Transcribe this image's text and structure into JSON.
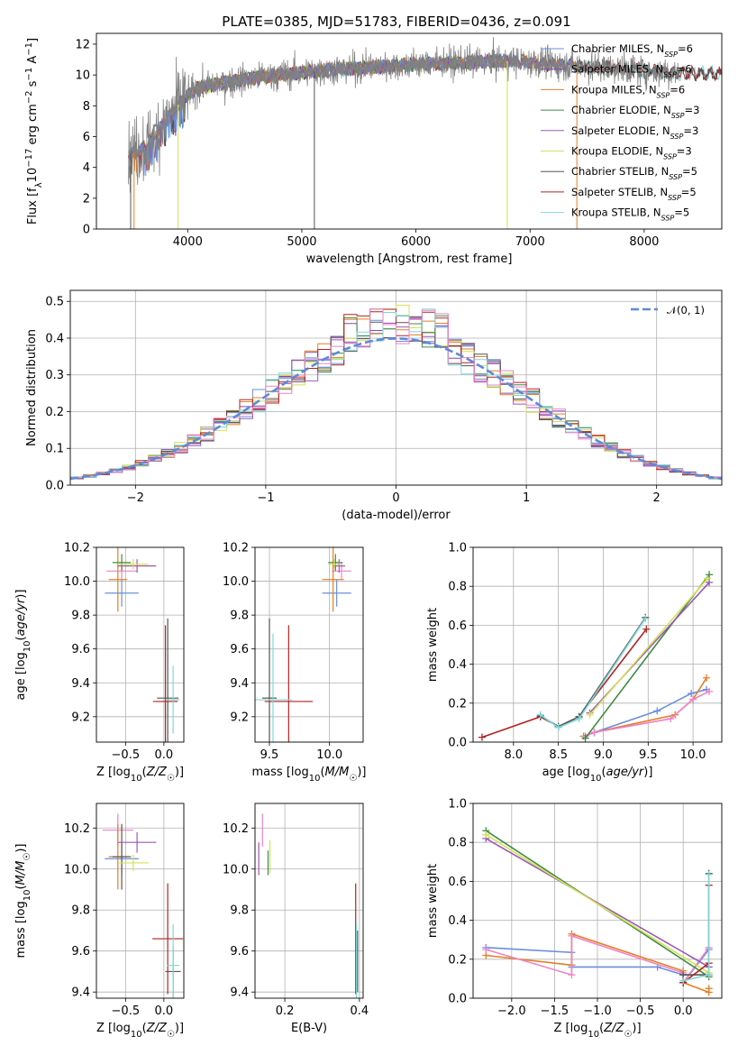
{
  "title": "PLATE=0385, MJD=51783, FIBERID=0436, z=0.091",
  "colors": {
    "chabrier_miles": "#6a8fdc",
    "salpeter_miles": "#8e44b0",
    "kroupa_miles": "#e67e22",
    "chabrier_elodie": "#3d8c40",
    "salpeter_elodie": "#9b59b6",
    "kroupa_elodie": "#d4e157",
    "chabrier_stelib": "#555555",
    "salpeter_stelib": "#b22222",
    "kroupa_stelib": "#7fd8d8",
    "data": "#808080",
    "normal": "#5b8bd9",
    "pink": "#ee82c8"
  },
  "chart_data": [
    {
      "type": "line",
      "id": "spectrum",
      "xlabel": "wavelength [Angstrom, rest frame]",
      "ylabel": "Flux [f_λ10^-17 erg cm^-2 s^-1 A^-1]",
      "xlim": [
        3200,
        8680
      ],
      "ylim": [
        0,
        12.7
      ],
      "xticks": [
        4000,
        5000,
        6000,
        7000,
        8000
      ],
      "yticks": [
        0,
        2,
        4,
        6,
        8,
        10,
        12
      ],
      "grid": false,
      "legend_position": "right",
      "legend": [
        {
          "label": "Chabrier MILES, N",
          "sub": "SSP",
          "suffix": "=6",
          "color": "chabrier_miles"
        },
        {
          "label": "Salpeter MILES, N",
          "sub": "SSP",
          "suffix": "=6",
          "color": "salpeter_miles"
        },
        {
          "label": "Kroupa MILES, N",
          "sub": "SSP",
          "suffix": "=6",
          "color": "kroupa_miles"
        },
        {
          "label": "Chabrier ELODIE, N",
          "sub": "SSP",
          "suffix": "=3",
          "color": "chabrier_elodie"
        },
        {
          "label": "Salpeter ELODIE, N",
          "sub": "SSP",
          "suffix": "=3",
          "color": "salpeter_elodie"
        },
        {
          "label": "Kroupa ELODIE, N",
          "sub": "SSP",
          "suffix": "=3",
          "color": "kroupa_elodie"
        },
        {
          "label": "Chabrier STELIB, N",
          "sub": "SSP",
          "suffix": "=5",
          "color": "chabrier_stelib"
        },
        {
          "label": "Salpeter STELIB, N",
          "sub": "SSP",
          "suffix": "=5",
          "color": "salpeter_stelib"
        },
        {
          "label": "Kroupa STELIB, N",
          "sub": "SSP",
          "suffix": "=5",
          "color": "kroupa_stelib"
        }
      ],
      "continuum": {
        "x": [
          3500,
          3650,
          3800,
          3950,
          4100,
          4400,
          4800,
          5200,
          5600,
          6000,
          6400,
          6800,
          7200,
          7600,
          8000,
          8300
        ],
        "y": [
          4.9,
          5.4,
          7.0,
          8.4,
          9.2,
          9.6,
          10.0,
          10.3,
          10.5,
          10.7,
          10.8,
          10.9,
          10.7,
          10.5,
          10.3,
          10.1
        ]
      }
    },
    {
      "type": "bar",
      "id": "residuals",
      "xlabel": "(data-model)/error",
      "ylabel": "Normed distribution",
      "xlim": [
        -2.5,
        2.5
      ],
      "ylim": [
        0,
        0.53
      ],
      "xticks": [
        -2,
        -1,
        0,
        1,
        2
      ],
      "yticks": [
        0.0,
        0.1,
        0.2,
        0.3,
        0.4,
        0.5
      ],
      "grid": true,
      "legend": [
        {
          "label": "𝒩(0, 1)",
          "style": "dashed",
          "color": "normal"
        }
      ],
      "legend_position": "top-right",
      "bin_width": 0.1
    },
    {
      "type": "scatter",
      "id": "age_vs_Z",
      "xlabel": "Z [log10(Z/Z☉)]",
      "ylabel": "age  [log10(age/yr)]",
      "xlim": [
        -0.88,
        0.26
      ],
      "ylim": [
        9.05,
        10.2
      ],
      "xticks": [
        -0.5,
        0.0
      ],
      "yticks": [
        9.2,
        9.4,
        9.6,
        9.8,
        10.0,
        10.2
      ],
      "grid": true,
      "points": [
        {
          "x": -0.55,
          "y": 9.93,
          "xerr": 0.22,
          "yerr": 0.08,
          "color": "chabrier_miles"
        },
        {
          "x": -0.55,
          "y": 10.06,
          "xerr": 0.2,
          "yerr": 0.05,
          "color": "pink"
        },
        {
          "x": -0.6,
          "y": 10.01,
          "xerr": 0.12,
          "yerr": 0.19,
          "color": "kroupa_miles"
        },
        {
          "x": -0.55,
          "y": 10.11,
          "xerr": 0.12,
          "yerr": 0.05,
          "color": "chabrier_elodie"
        },
        {
          "x": -0.35,
          "y": 10.09,
          "xerr": 0.25,
          "yerr": 0.04,
          "color": "salpeter_elodie"
        },
        {
          "x": -0.4,
          "y": 10.1,
          "xerr": 0.2,
          "yerr": 0.03,
          "color": "kroupa_elodie"
        },
        {
          "x": 0.05,
          "y": 9.31,
          "xerr": 0.14,
          "yerr": 0.47,
          "color": "chabrier_stelib"
        },
        {
          "x": 0.02,
          "y": 9.29,
          "xerr": 0.16,
          "yerr": 0.45,
          "color": "salpeter_stelib"
        },
        {
          "x": 0.12,
          "y": 9.3,
          "xerr": 0.08,
          "yerr": 0.2,
          "color": "kroupa_stelib"
        }
      ]
    },
    {
      "type": "scatter",
      "id": "age_vs_mass",
      "xlabel": "mass [log10(M/M☉)]",
      "ylabel": "",
      "xlim": [
        9.38,
        10.28
      ],
      "ylim": [
        9.05,
        10.2
      ],
      "xticks": [
        9.5,
        10.0
      ],
      "yticks": [
        9.2,
        9.4,
        9.6,
        9.8,
        10.0,
        10.2
      ],
      "grid": true,
      "points": [
        {
          "x": 10.06,
          "y": 9.93,
          "xerr": 0.12,
          "yerr": 0.08,
          "color": "chabrier_miles"
        },
        {
          "x": 10.1,
          "y": 10.06,
          "xerr": 0.08,
          "yerr": 0.05,
          "color": "pink"
        },
        {
          "x": 10.03,
          "y": 10.01,
          "xerr": 0.09,
          "yerr": 0.19,
          "color": "kroupa_miles"
        },
        {
          "x": 10.05,
          "y": 10.11,
          "xerr": 0.06,
          "yerr": 0.05,
          "color": "chabrier_elodie"
        },
        {
          "x": 10.08,
          "y": 10.09,
          "xerr": 0.05,
          "yerr": 0.04,
          "color": "salpeter_elodie"
        },
        {
          "x": 10.04,
          "y": 10.1,
          "xerr": 0.05,
          "yerr": 0.03,
          "color": "kroupa_elodie"
        },
        {
          "x": 9.5,
          "y": 9.31,
          "xerr": 0.06,
          "yerr": 0.47,
          "color": "chabrier_stelib"
        },
        {
          "x": 9.66,
          "y": 9.29,
          "xerr": 0.2,
          "yerr": 0.45,
          "color": "salpeter_stelib"
        },
        {
          "x": 9.53,
          "y": 9.3,
          "xerr": 0.16,
          "yerr": 0.39,
          "color": "kroupa_stelib"
        }
      ]
    },
    {
      "type": "line",
      "id": "weight_vs_age",
      "xlabel": "age  [log10(age/yr)]",
      "ylabel": "mass weight",
      "xlim": [
        7.55,
        10.32
      ],
      "ylim": [
        0.0,
        1.0
      ],
      "xticks": [
        8.0,
        8.5,
        9.0,
        9.5,
        10.0
      ],
      "yticks": [
        0.0,
        0.2,
        0.4,
        0.6,
        0.8,
        1.0
      ],
      "grid": true,
      "series": [
        {
          "color": "salpeter_stelib",
          "x": [
            7.65,
            8.3,
            8.5,
            8.73,
            9.48
          ],
          "y": [
            0.025,
            0.13,
            0.08,
            0.13,
            0.58
          ]
        },
        {
          "color": "chabrier_stelib",
          "x": [
            8.3,
            8.5,
            8.73,
            9.47
          ],
          "y": [
            0.135,
            0.08,
            0.13,
            0.64
          ]
        },
        {
          "color": "kroupa_stelib",
          "x": [
            8.3,
            8.5,
            8.73,
            9.47
          ],
          "y": [
            0.14,
            0.075,
            0.12,
            0.635
          ]
        },
        {
          "color": "chabrier_miles",
          "x": [
            8.8,
            8.9,
            9.6,
            9.98,
            10.15
          ],
          "y": [
            0.03,
            0.05,
            0.16,
            0.25,
            0.27
          ]
        },
        {
          "color": "kroupa_miles",
          "x": [
            8.78,
            8.9,
            9.8,
            10.0,
            10.15
          ],
          "y": [
            0.03,
            0.05,
            0.14,
            0.22,
            0.33
          ]
        },
        {
          "color": "pink",
          "x": [
            8.8,
            8.9,
            9.75,
            10.0,
            10.18
          ],
          "y": [
            0.03,
            0.05,
            0.12,
            0.22,
            0.26
          ]
        },
        {
          "color": "chabrier_elodie",
          "x": [
            8.8,
            10.18
          ],
          "y": [
            0.02,
            0.86
          ]
        },
        {
          "color": "salpeter_elodie",
          "x": [
            8.85,
            10.18
          ],
          "y": [
            0.15,
            0.82
          ]
        },
        {
          "color": "kroupa_elodie",
          "x": [
            8.85,
            10.16
          ],
          "y": [
            0.14,
            0.84
          ]
        }
      ]
    },
    {
      "type": "scatter",
      "id": "mass_vs_Z",
      "xlabel": "Z [log10(Z/Z☉)]",
      "ylabel": "mass [log10(M/M☉)]",
      "xlim": [
        -0.88,
        0.26
      ],
      "ylim": [
        9.37,
        10.32
      ],
      "xticks": [
        -0.5,
        0.0
      ],
      "yticks": [
        9.4,
        9.6,
        9.8,
        10.0,
        10.2
      ],
      "grid": true,
      "points": [
        {
          "x": -0.55,
          "y": 10.05,
          "xerr": 0.22,
          "yerr": 0.08,
          "color": "chabrier_miles"
        },
        {
          "x": -0.6,
          "y": 10.19,
          "xerr": 0.2,
          "yerr": 0.08,
          "color": "pink"
        },
        {
          "x": -0.6,
          "y": 10.06,
          "xerr": 0.12,
          "yerr": 0.16,
          "color": "kroupa_miles"
        },
        {
          "x": -0.55,
          "y": 10.06,
          "xerr": 0.12,
          "yerr": 0.16,
          "color": "chabrier_stelib"
        },
        {
          "x": -0.35,
          "y": 10.13,
          "xerr": 0.25,
          "yerr": 0.05,
          "color": "salpeter_elodie"
        },
        {
          "x": -0.4,
          "y": 10.03,
          "xerr": 0.2,
          "yerr": 0.04,
          "color": "kroupa_elodie"
        },
        {
          "x": 0.05,
          "y": 9.66,
          "xerr": 0.2,
          "yerr": 0.27,
          "color": "salpeter_stelib"
        },
        {
          "x": 0.12,
          "y": 9.5,
          "xerr": 0.1,
          "yerr": 0.12,
          "color": "chabrier_stelib"
        },
        {
          "x": 0.12,
          "y": 9.53,
          "xerr": 0.08,
          "yerr": 0.2,
          "color": "kroupa_stelib"
        }
      ]
    },
    {
      "type": "scatter",
      "id": "mass_vs_ebv",
      "xlabel": "E(B-V)",
      "ylabel": "",
      "xlim": [
        0.12,
        0.41
      ],
      "ylim": [
        9.37,
        10.32
      ],
      "xticks": [
        0.2,
        0.4
      ],
      "yticks": [
        9.4,
        9.6,
        9.8,
        10.0,
        10.2
      ],
      "grid": true,
      "points": [
        {
          "x": 0.14,
          "y": 10.19,
          "xerr": 0.0,
          "yerr": 0.08,
          "color": "pink"
        },
        {
          "x": 0.13,
          "y": 10.05,
          "xerr": 0.0,
          "yerr": 0.08,
          "color": "salpeter_elodie"
        },
        {
          "x": 0.155,
          "y": 10.03,
          "xerr": 0.0,
          "yerr": 0.06,
          "color": "chabrier_elodie"
        },
        {
          "x": 0.16,
          "y": 10.06,
          "xerr": 0.0,
          "yerr": 0.08,
          "color": "kroupa_elodie"
        },
        {
          "x": 0.39,
          "y": 9.66,
          "xerr": 0.0,
          "yerr": 0.27,
          "color": "salpeter_stelib"
        },
        {
          "x": 0.395,
          "y": 9.55,
          "xerr": 0.0,
          "yerr": 0.15,
          "color": "chabrier_stelib"
        },
        {
          "x": 0.392,
          "y": 9.53,
          "xerr": 0.0,
          "yerr": 0.2,
          "color": "kroupa_stelib"
        }
      ]
    },
    {
      "type": "line",
      "id": "weight_vs_Z",
      "xlabel": "Z [log10(Z/Z☉)]",
      "ylabel": "mass weight",
      "xlim": [
        -2.45,
        0.45
      ],
      "ylim": [
        0.0,
        1.0
      ],
      "xticks": [
        -2.0,
        -1.5,
        -1.0,
        -0.5,
        0.0
      ],
      "yticks": [
        0.0,
        0.2,
        0.4,
        0.6,
        0.8,
        1.0
      ],
      "grid": true,
      "series": [
        {
          "color": "chabrier_miles",
          "x": [
            -2.3,
            -1.3,
            -1.3,
            -0.3,
            0.0,
            0.0,
            0.3
          ],
          "y": [
            0.26,
            0.235,
            0.16,
            0.16,
            0.12,
            0.08,
            0.25
          ]
        },
        {
          "color": "kroupa_miles",
          "x": [
            -2.3,
            -1.3,
            -1.3,
            0.0,
            0.0,
            0.3,
            0.3
          ],
          "y": [
            0.22,
            0.17,
            0.33,
            0.14,
            0.08,
            0.03,
            0.05
          ]
        },
        {
          "color": "pink",
          "x": [
            -2.3,
            -1.3,
            -1.3,
            0.0,
            0.0,
            0.3
          ],
          "y": [
            0.25,
            0.12,
            0.32,
            0.13,
            0.08,
            0.26
          ]
        },
        {
          "color": "chabrier_elodie",
          "x": [
            -2.3,
            0.3
          ],
          "y": [
            0.86,
            0.11
          ]
        },
        {
          "color": "salpeter_elodie",
          "x": [
            -2.3,
            0.3
          ],
          "y": [
            0.82,
            0.16
          ]
        },
        {
          "color": "kroupa_elodie",
          "x": [
            -2.3,
            0.3
          ],
          "y": [
            0.84,
            0.13
          ]
        },
        {
          "color": "chabrier_stelib",
          "x": [
            0.0,
            0.0,
            0.3,
            0.3
          ],
          "y": [
            0.08,
            0.12,
            0.12,
            0.64
          ]
        },
        {
          "color": "salpeter_stelib",
          "x": [
            0.0,
            0.3,
            0.3
          ],
          "y": [
            0.08,
            0.18,
            0.58
          ]
        },
        {
          "color": "kroupa_stelib",
          "x": [
            0.0,
            0.3,
            0.3
          ],
          "y": [
            0.09,
            0.12,
            0.635
          ]
        }
      ]
    }
  ]
}
